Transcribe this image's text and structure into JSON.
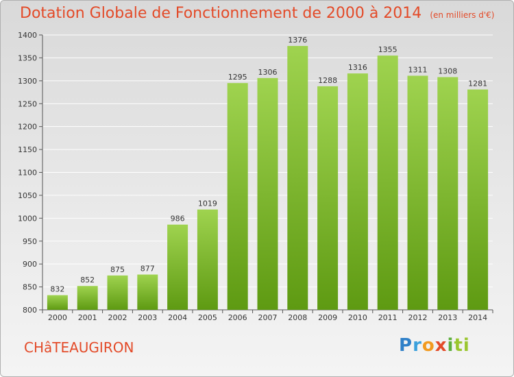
{
  "header": {
    "title": "Dotation Globale de Fonctionnement de 2000 à 2014",
    "unit": "(en milliers d'€)"
  },
  "footer": {
    "commune": "CHâTEAUGIRON",
    "logo": "Proxiti"
  },
  "colors": {
    "title": "#e34a28",
    "bar_top": "#9fd34f",
    "bar_bottom": "#5e9a12",
    "grid": "#ffffff"
  },
  "chart_data": {
    "type": "bar",
    "title": "Dotation Globale de Fonctionnement de 2000 à 2014",
    "subtitle": "(en milliers d'€)",
    "xlabel": "",
    "ylabel": "",
    "categories": [
      "2000",
      "2001",
      "2002",
      "2003",
      "2004",
      "2005",
      "2006",
      "2007",
      "2008",
      "2009",
      "2010",
      "2011",
      "2012",
      "2013",
      "2014"
    ],
    "values": [
      832,
      852,
      875,
      877,
      986,
      1019,
      1295,
      1306,
      1376,
      1288,
      1316,
      1355,
      1311,
      1308,
      1281
    ],
    "ylim": [
      800,
      1400
    ],
    "yticks": [
      800,
      850,
      900,
      950,
      1000,
      1050,
      1100,
      1150,
      1200,
      1250,
      1300,
      1350,
      1400
    ],
    "grid": true,
    "legend": "none"
  }
}
